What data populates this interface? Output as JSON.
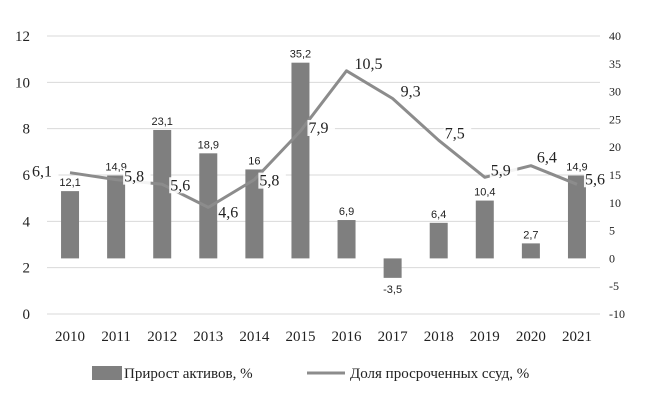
{
  "chart_data": {
    "type": "bar",
    "categories": [
      "2010",
      "2011",
      "2012",
      "2013",
      "2014",
      "2015",
      "2016",
      "2017",
      "2018",
      "2019",
      "2020",
      "2021"
    ],
    "series": [
      {
        "name": "Прирост активов, %",
        "type": "bar",
        "axis": "right",
        "values": [
          12.1,
          14.9,
          23.1,
          18.9,
          16,
          35.2,
          6.9,
          -3.5,
          6.4,
          10.4,
          2.7,
          14.9
        ],
        "labels": [
          "12,1",
          "14,9",
          "23,1",
          "18,9",
          "16",
          "35,2",
          "6,9",
          "-3,5",
          "6,4",
          "10,4",
          "2,7",
          "14,9"
        ],
        "color": "#7f7f7f"
      },
      {
        "name": "Доля просроченных ссуд, %",
        "type": "line",
        "axis": "left",
        "values": [
          6.1,
          5.8,
          5.6,
          4.6,
          5.8,
          7.9,
          10.5,
          9.3,
          7.5,
          5.9,
          6.4,
          5.6
        ],
        "labels": [
          "6,1",
          "5,8",
          "5,6",
          "4,6",
          "5,8",
          "7,9",
          "10,5",
          "9,3",
          "7,5",
          "5,9",
          "6,4",
          "5,6"
        ],
        "color": "#8c8c8c"
      }
    ],
    "left_axis": {
      "ylim": [
        0,
        12
      ],
      "ticks": [
        "0",
        "2",
        "4",
        "6",
        "8",
        "10",
        "12"
      ]
    },
    "right_axis": {
      "ylim": [
        -10,
        40
      ],
      "ticks": [
        "-10",
        "-5",
        "0",
        "5",
        "10",
        "15",
        "20",
        "25",
        "30",
        "35",
        "40"
      ]
    },
    "grid": true,
    "legend": "bottom"
  }
}
